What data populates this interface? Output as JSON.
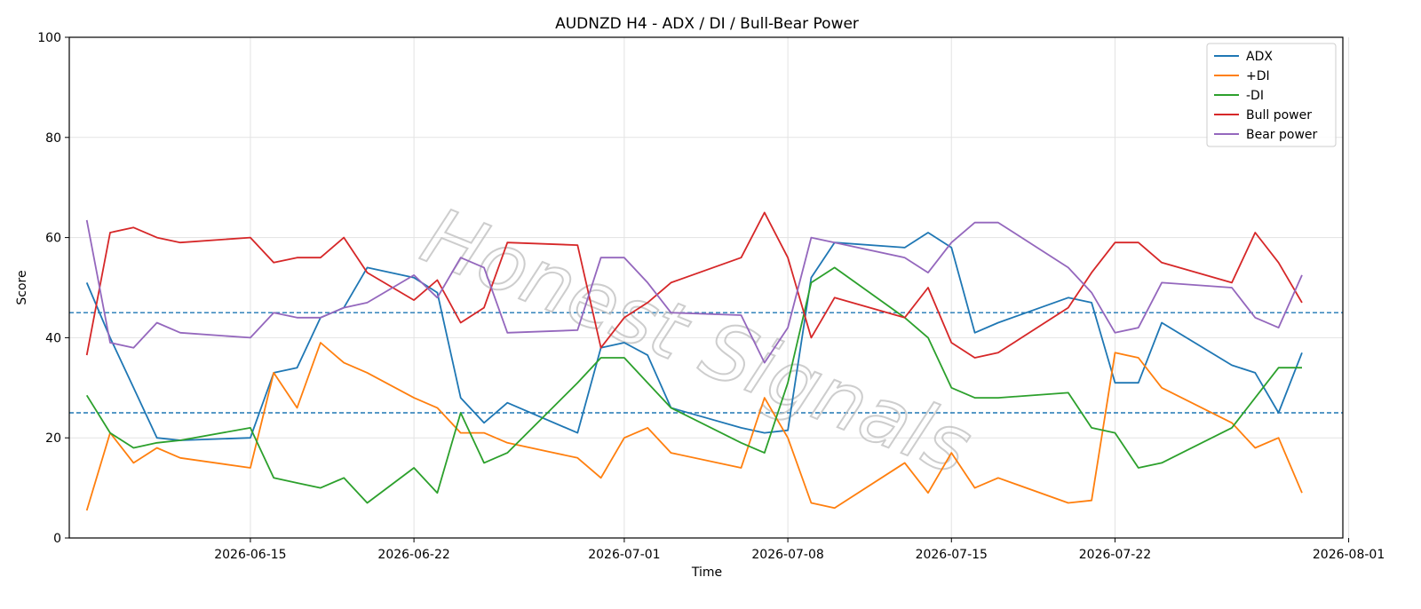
{
  "chart_data": {
    "type": "line",
    "title": "AUDNZD H4 - ADX / DI / Bull-Bear Power",
    "xlabel": "Time",
    "ylabel": "Score",
    "ylim": [
      0,
      100
    ],
    "yticks": [
      0,
      20,
      40,
      60,
      80,
      100
    ],
    "xlim": [
      "2026-06-07T06:00",
      "2026-07-31T18:00"
    ],
    "xticks": [
      "2026-06-15",
      "2026-06-22",
      "2026-07-01",
      "2026-07-08",
      "2026-07-15",
      "2026-07-22",
      "2026-08-01"
    ],
    "grid": true,
    "legend_position": "top-right",
    "reference_lines": [
      45,
      25
    ],
    "watermark": "Honest Signals",
    "x": [
      "2026-06-08T00:00",
      "2026-06-09T00:00",
      "2026-06-10T00:00",
      "2026-06-11T00:00",
      "2026-06-12T00:00",
      "2026-06-15T00:00",
      "2026-06-16T00:00",
      "2026-06-17T00:00",
      "2026-06-18T00:00",
      "2026-06-19T00:00",
      "2026-06-20T00:00",
      "2026-06-22T00:00",
      "2026-06-23T00:00",
      "2026-06-24T00:00",
      "2026-06-25T00:00",
      "2026-06-26T00:00",
      "2026-06-29T00:00",
      "2026-06-30T00:00",
      "2026-07-01T00:00",
      "2026-07-02T00:00",
      "2026-07-03T00:00",
      "2026-07-06T00:00",
      "2026-07-07T00:00",
      "2026-07-08T00:00",
      "2026-07-09T00:00",
      "2026-07-10T00:00",
      "2026-07-13T00:00",
      "2026-07-14T00:00",
      "2026-07-15T00:00",
      "2026-07-16T00:00",
      "2026-07-17T00:00",
      "2026-07-20T00:00",
      "2026-07-21T00:00",
      "2026-07-22T00:00",
      "2026-07-23T00:00",
      "2026-07-24T00:00",
      "2026-07-27T00:00",
      "2026-07-28T00:00",
      "2026-07-29T00:00",
      "2026-07-30T00:00"
    ],
    "series": [
      {
        "name": "ADX",
        "color": "#1f77b4",
        "values": [
          51,
          40,
          30,
          20,
          19.5,
          20,
          33,
          34,
          44,
          46,
          54,
          52,
          49,
          28,
          23,
          27,
          21,
          38,
          39,
          36.5,
          26,
          22,
          21,
          21.5,
          52,
          59,
          58,
          61,
          58,
          41,
          43,
          48,
          47,
          31,
          31,
          43,
          34.5,
          33,
          25,
          37
        ]
      },
      {
        "name": "+DI",
        "color": "#ff7f0e",
        "values": [
          5.5,
          21,
          15,
          18,
          16,
          14,
          33,
          26,
          39,
          35,
          33,
          28,
          26,
          21,
          21,
          19,
          16,
          12,
          20,
          22,
          17,
          14,
          28,
          20,
          7,
          6,
          15,
          9,
          17,
          10,
          12,
          7,
          7.5,
          37,
          36,
          30,
          23,
          18,
          20,
          9
        ]
      },
      {
        "name": "-DI",
        "color": "#2ca02c",
        "values": [
          28.5,
          21,
          18,
          19,
          19.5,
          22,
          12,
          11,
          10,
          12,
          7,
          14,
          9,
          25,
          15,
          17,
          31,
          36,
          36,
          31,
          26,
          19,
          17,
          31,
          51,
          54,
          44,
          40,
          30,
          28,
          28,
          29,
          22,
          21,
          14,
          15,
          22,
          28,
          34,
          34
        ]
      },
      {
        "name": "Bull power",
        "color": "#d62728",
        "values": [
          36.5,
          61,
          62,
          60,
          59,
          60,
          55,
          56,
          56,
          60,
          53,
          47.5,
          51.5,
          43,
          46,
          59,
          58.5,
          38,
          44,
          47,
          51,
          56,
          65,
          56,
          40,
          48,
          44,
          50,
          39,
          36,
          37,
          46,
          53,
          59,
          59,
          55,
          51,
          61,
          55,
          47
        ]
      },
      {
        "name": "Bear power",
        "color": "#9467bd",
        "values": [
          63.5,
          39,
          38,
          43,
          41,
          40,
          45,
          44,
          44,
          46,
          47,
          52.5,
          48,
          56,
          54,
          41,
          41.5,
          56,
          56,
          51,
          45,
          44.5,
          35,
          42,
          60,
          59,
          56,
          53,
          59,
          63,
          63,
          54,
          49,
          41,
          42,
          51,
          50,
          44,
          42,
          52.5
        ]
      }
    ]
  }
}
